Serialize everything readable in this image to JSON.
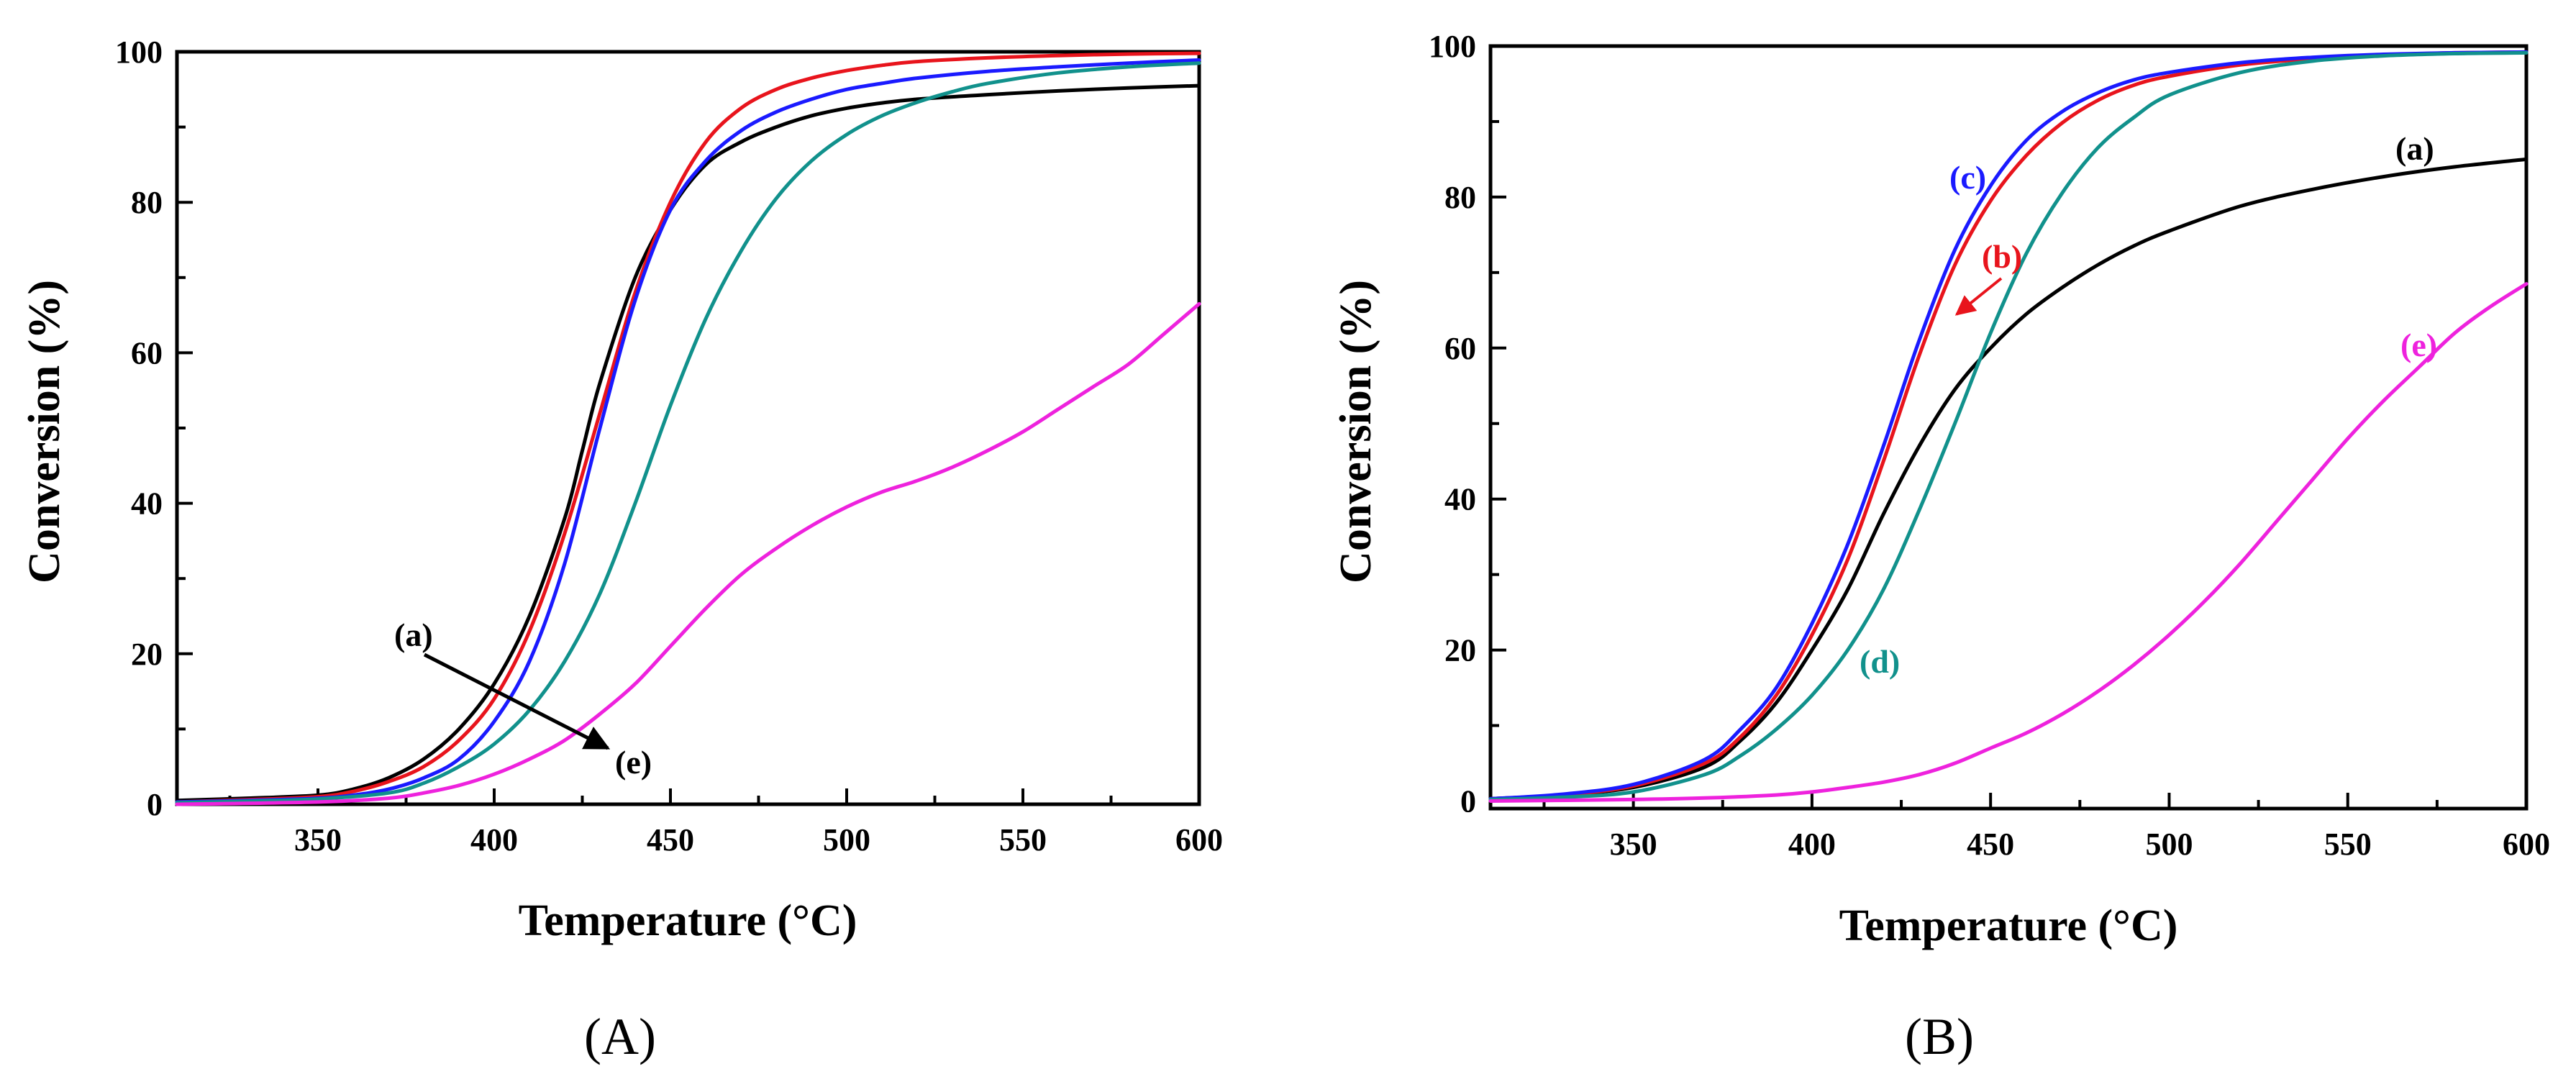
{
  "chart_data": [
    {
      "panel": "A",
      "type": "line",
      "title": "",
      "xlabel": "Temperature (°C)",
      "ylabel": "Conversion (%)",
      "xlim": [
        310,
        600
      ],
      "ylim": [
        0,
        100
      ],
      "xticks": [
        350,
        400,
        450,
        500,
        550,
        600
      ],
      "yticks": [
        0,
        20,
        40,
        60,
        80,
        100
      ],
      "series": [
        {
          "name": "a",
          "color": "#000000",
          "x": [
            310,
            330,
            350,
            360,
            370,
            380,
            390,
            400,
            410,
            420,
            425,
            430,
            440,
            450,
            460,
            470,
            480,
            490,
            500,
            510,
            520,
            540,
            560,
            580,
            600
          ],
          "y": [
            0.5,
            0.8,
            1.2,
            2,
            3.5,
            6,
            10,
            16,
            25,
            38,
            47,
            56,
            70,
            79,
            85,
            88,
            90,
            91.5,
            92.5,
            93.2,
            93.7,
            94.3,
            94.8,
            95.2,
            95.5
          ]
        },
        {
          "name": "b",
          "color": "#e8141c",
          "x": [
            310,
            330,
            350,
            360,
            370,
            380,
            390,
            400,
            410,
            420,
            430,
            440,
            450,
            460,
            470,
            480,
            490,
            500,
            510,
            520,
            540,
            560,
            580,
            600
          ],
          "y": [
            0.3,
            0.6,
            1,
            1.7,
            3,
            5,
            8.5,
            14,
            23,
            36,
            52,
            68,
            80,
            88,
            92.5,
            95,
            96.5,
            97.5,
            98.2,
            98.7,
            99.2,
            99.5,
            99.7,
            99.8
          ]
        },
        {
          "name": "c",
          "color": "#1a1aff",
          "x": [
            310,
            330,
            350,
            360,
            370,
            380,
            390,
            400,
            410,
            420,
            430,
            440,
            450,
            460,
            470,
            480,
            490,
            500,
            510,
            520,
            540,
            560,
            580,
            600
          ],
          "y": [
            0.3,
            0.5,
            0.8,
            1.2,
            2,
            3.5,
            6,
            11,
            19,
            32,
            50,
            67,
            79,
            85.5,
            89.5,
            92,
            93.7,
            95,
            95.8,
            96.5,
            97.4,
            98,
            98.5,
            98.9
          ]
        },
        {
          "name": "d",
          "color": "#11918c",
          "x": [
            310,
            330,
            350,
            370,
            380,
            390,
            400,
            410,
            420,
            430,
            440,
            450,
            460,
            470,
            480,
            490,
            500,
            510,
            520,
            530,
            540,
            560,
            580,
            600
          ],
          "y": [
            0.2,
            0.4,
            0.7,
            1.5,
            2.8,
            5,
            8,
            12.5,
            19,
            28,
            40,
            53,
            64.5,
            73.5,
            80.5,
            85.5,
            89,
            91.5,
            93.3,
            94.7,
            95.8,
            97.2,
            98,
            98.5
          ]
        },
        {
          "name": "e",
          "color": "#ee22dd",
          "x": [
            310,
            350,
            370,
            380,
            390,
            400,
            410,
            420,
            430,
            440,
            450,
            460,
            470,
            480,
            490,
            500,
            510,
            520,
            530,
            540,
            550,
            560,
            570,
            580,
            590,
            600
          ],
          "y": [
            0,
            0.3,
            0.8,
            1.5,
            2.5,
            4,
            6,
            8.5,
            12,
            16,
            21,
            26,
            30.5,
            34,
            37,
            39.5,
            41.5,
            43,
            44.8,
            47,
            49.5,
            52.5,
            55.5,
            58.5,
            62.5,
            66.5
          ]
        }
      ],
      "annotations": [
        {
          "text": "(a)",
          "color": "#000000"
        },
        {
          "text": "(e)",
          "color": "#000000"
        }
      ],
      "caption": "(A)"
    },
    {
      "panel": "B",
      "type": "line",
      "title": "",
      "xlabel": "Temperature (°C)",
      "ylabel": "Conversion (%)",
      "xlim": [
        310,
        600
      ],
      "ylim": [
        -1,
        100
      ],
      "xticks": [
        350,
        400,
        450,
        500,
        550,
        600
      ],
      "yticks": [
        0,
        20,
        40,
        60,
        80,
        100
      ],
      "series": [
        {
          "name": "a",
          "color": "#000000",
          "x": [
            310,
            330,
            350,
            370,
            380,
            390,
            400,
            410,
            420,
            430,
            440,
            450,
            460,
            470,
            480,
            490,
            500,
            520,
            540,
            560,
            580,
            600
          ],
          "y": [
            0.3,
            0.8,
            1.8,
            4.5,
            8,
            13,
            20,
            28,
            38,
            47,
            54.5,
            60,
            64.5,
            68,
            71,
            73.5,
            75.5,
            78.8,
            81,
            82.7,
            84,
            85
          ]
        },
        {
          "name": "b",
          "color": "#e8141c",
          "x": [
            310,
            330,
            350,
            370,
            380,
            390,
            400,
            410,
            420,
            430,
            440,
            450,
            460,
            470,
            480,
            490,
            500,
            520,
            540,
            560,
            580,
            600
          ],
          "y": [
            0.3,
            0.8,
            2,
            5,
            8.5,
            14,
            22,
            32,
            45,
            59,
            71,
            79.5,
            85.5,
            89.8,
            92.8,
            94.8,
            96,
            97.5,
            98.3,
            98.8,
            99.1,
            99.2
          ]
        },
        {
          "name": "c",
          "color": "#1a1aff",
          "x": [
            310,
            330,
            350,
            370,
            380,
            390,
            400,
            410,
            420,
            430,
            440,
            450,
            460,
            470,
            480,
            490,
            500,
            520,
            540,
            560,
            580,
            600
          ],
          "y": [
            0.3,
            0.9,
            2.2,
            5.5,
            9.5,
            15,
            23.5,
            34,
            47,
            61,
            73,
            81.5,
            87.5,
            91.3,
            93.8,
            95.5,
            96.5,
            97.8,
            98.5,
            98.9,
            99.1,
            99.2
          ]
        },
        {
          "name": "d",
          "color": "#11918c",
          "x": [
            310,
            330,
            350,
            370,
            380,
            390,
            400,
            410,
            420,
            430,
            440,
            450,
            460,
            470,
            480,
            490,
            500,
            520,
            540,
            560,
            580,
            600
          ],
          "y": [
            0.2,
            0.5,
            1.2,
            3.5,
            6,
            9.5,
            14,
            20,
            28,
            38.5,
            50,
            62,
            72.5,
            80.5,
            86.5,
            90.5,
            93.5,
            96.5,
            98,
            98.7,
            99,
            99.1
          ]
        },
        {
          "name": "e",
          "color": "#ee22dd",
          "x": [
            310,
            350,
            370,
            390,
            400,
            410,
            420,
            430,
            440,
            450,
            460,
            470,
            480,
            490,
            500,
            510,
            520,
            530,
            540,
            550,
            560,
            570,
            580,
            590,
            600
          ],
          "y": [
            0,
            0.2,
            0.4,
            0.8,
            1.2,
            1.8,
            2.5,
            3.5,
            5,
            7,
            9,
            11.5,
            14.5,
            18,
            22,
            26.5,
            31.5,
            37,
            42.5,
            48,
            53,
            57.5,
            62,
            65.5,
            68.5
          ]
        }
      ],
      "annotations": [
        {
          "text": "(a)",
          "color": "#000000"
        },
        {
          "text": "(b)",
          "color": "#e8141c"
        },
        {
          "text": "(c)",
          "color": "#1a1aff"
        },
        {
          "text": "(d)",
          "color": "#11918c"
        },
        {
          "text": "(e)",
          "color": "#ee22dd"
        }
      ],
      "caption": "(B)"
    }
  ]
}
